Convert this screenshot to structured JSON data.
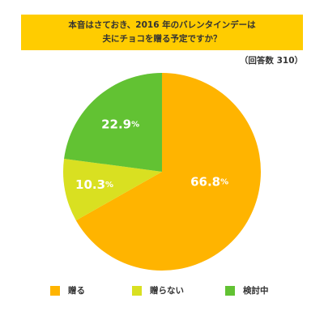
{
  "header": {
    "title_line1": "本音はさておき、2016 年のバレンタインデーは",
    "title_line2": "夫にチョコを贈る予定ですか？",
    "count": "（回答数 310）"
  },
  "colors": {
    "banner": "#ffcc00",
    "slice_give": "#ffb400",
    "slice_not_give": "#d9e021",
    "slice_considering": "#62c233"
  },
  "chart_data": {
    "type": "pie",
    "title": "本音はさておき、2016 年のバレンタインデーは夫にチョコを贈る予定ですか？",
    "categories": [
      "贈る",
      "贈らない",
      "検討中"
    ],
    "values": [
      66.8,
      10.3,
      22.9
    ],
    "labels": [
      "66.8",
      "10.3",
      "22.9"
    ],
    "unit": "%",
    "legend_placement": "bottom"
  }
}
